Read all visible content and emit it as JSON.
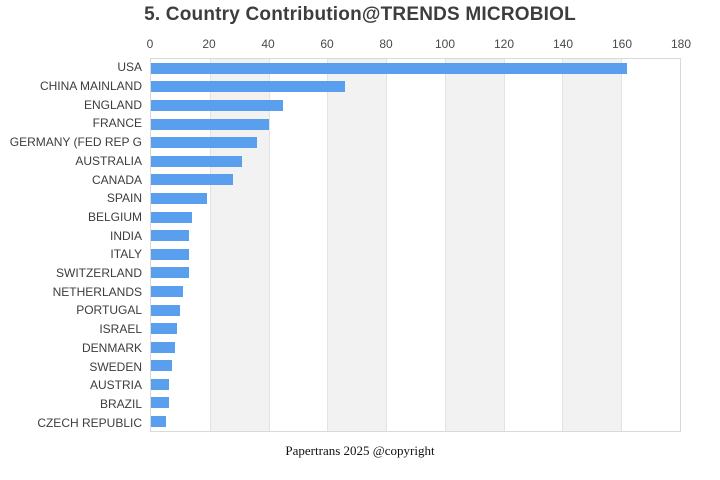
{
  "chart_data": {
    "type": "bar",
    "orientation": "horizontal",
    "title": "5. Country Contribution@TRENDS MICROBIOL",
    "categories": [
      "USA",
      "CHINA MAINLAND",
      "ENGLAND",
      "FRANCE",
      "GERMANY (FED REP G",
      "AUSTRALIA",
      "CANADA",
      "SPAIN",
      "BELGIUM",
      "INDIA",
      "ITALY",
      "SWITZERLAND",
      "NETHERLANDS",
      "PORTUGAL",
      "ISRAEL",
      "DENMARK",
      "SWEDEN",
      "AUSTRIA",
      "BRAZIL",
      "CZECH REPUBLIC"
    ],
    "values": [
      162,
      66,
      45,
      40,
      36,
      31,
      28,
      19,
      14,
      13,
      13,
      13,
      11,
      10,
      9,
      8,
      7,
      6,
      6,
      5
    ],
    "xlabel": "",
    "ylabel": "",
    "xlim": [
      0,
      180
    ],
    "x_ticks": [
      0,
      20,
      40,
      60,
      80,
      100,
      120,
      140,
      160,
      180
    ],
    "axis_position": "top",
    "grid": true,
    "legend": "none",
    "bar_color": "#5a9fee",
    "band_color_even": "#ffffff",
    "band_color_odd": "#f2f2f2",
    "gridline_color": "#e3e3e3",
    "border_color": "#d9d9d9"
  },
  "footer": {
    "text": "Papertrans 2025 @copyright"
  }
}
